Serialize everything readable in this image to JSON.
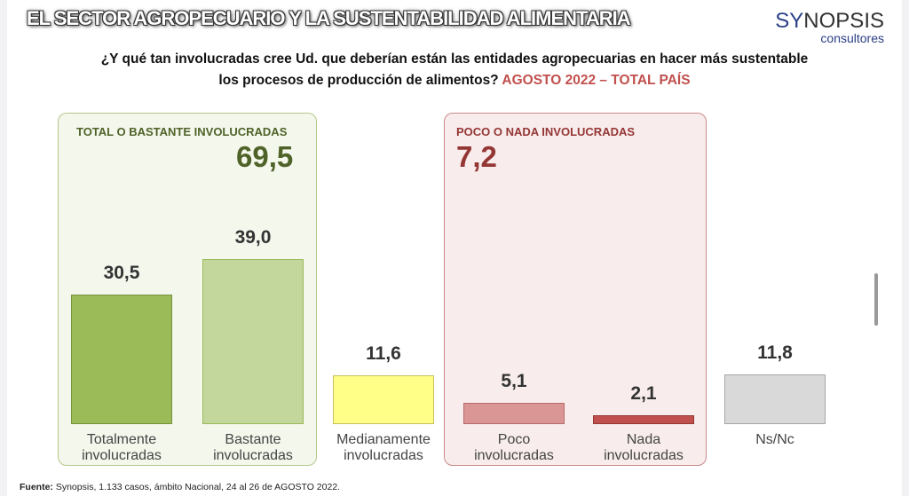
{
  "header": {
    "title": "EL SECTOR AGROPECUARIO Y LA SUSTENTABILIDAD ALIMENTARIA",
    "logo_main_a": "SY",
    "logo_main_b": "NOPSIS",
    "logo_sub": "consultores"
  },
  "question": {
    "line1": "¿Y qué tan involucradas cree Ud. que deberían están las entidades agropecuarias en hacer más sustentable",
    "line2": "los procesos de producción de alimentos?",
    "highlight": "AGOSTO 2022 – TOTAL PAÍS"
  },
  "groups": [
    {
      "label": "TOTAL O BASTANTE INVOLUCRADAS",
      "value": "69,5",
      "color": "#4f6228"
    },
    {
      "label": "POCO O NADA INVOLUCRADAS",
      "value": "7,2",
      "color": "#943634"
    }
  ],
  "chart_data": {
    "type": "bar",
    "categories": [
      [
        "Totalmente",
        "involucradas"
      ],
      [
        "Bastante",
        "involucradas"
      ],
      [
        "Medianamente",
        "involucradas"
      ],
      [
        "Poco",
        "involucradas"
      ],
      [
        "Nada",
        "involucradas"
      ],
      [
        "Ns/Nc",
        ""
      ]
    ],
    "values": [
      30.5,
      39.0,
      11.6,
      5.1,
      2.1,
      11.8
    ],
    "value_labels": [
      "30,5",
      "39,0",
      "11,6",
      "5,1",
      "2,1",
      "11,8"
    ],
    "colors": [
      "#9bbb59",
      "#c3d69b",
      "#ffff88",
      "#d99694",
      "#c0504d",
      "#d9d9d9"
    ],
    "border_colors": [
      "#76923c",
      "#9bbb59",
      "#c8c060",
      "#b96b69",
      "#953735",
      "#a6a6a6"
    ],
    "ylim": [
      0,
      45
    ]
  },
  "footer": {
    "source_label": "Fuente:",
    "source_text": " Synopsis, 1.133 casos, ámbito Nacional, 24 al 26 de AGOSTO 2022."
  }
}
